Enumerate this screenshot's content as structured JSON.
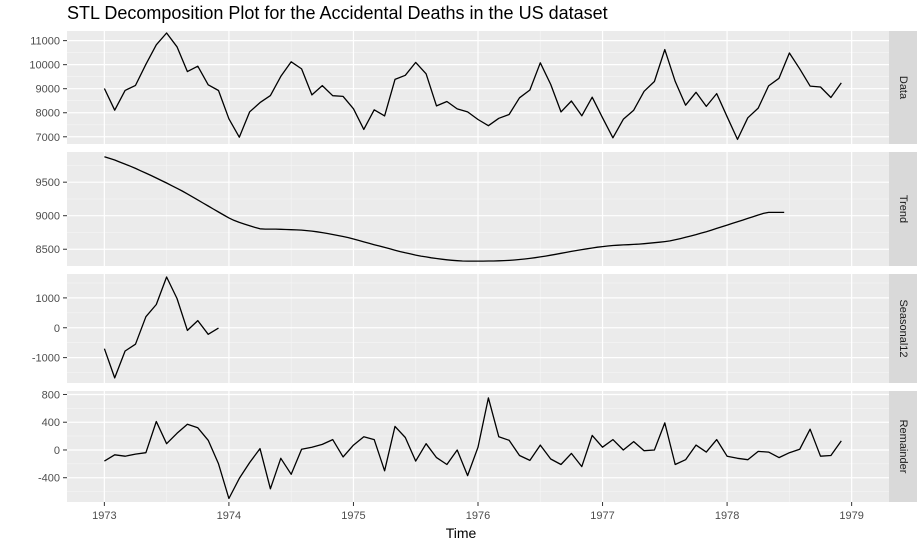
{
  "chart_data": {
    "type": "line",
    "title": "STL Decomposition Plot for the Accidental Deaths in the US dataset",
    "xlabel": "Time",
    "x_ticks": [
      "1973",
      "1974",
      "1975",
      "1976",
      "1977",
      "1978",
      "1979"
    ],
    "x_start": 1973,
    "x_step": 0.0833333,
    "xlim": [
      1972.7,
      1979.3
    ],
    "grid": true,
    "panels": [
      {
        "name": "Data",
        "ylim": [
          6700,
          11400
        ],
        "yticks": [
          7000,
          8000,
          9000,
          10000,
          11000
        ],
        "ytick_labels": [
          "7000",
          "8000",
          "9000",
          "10000",
          "11000"
        ],
        "values": [
          9007,
          8106,
          8928,
          9137,
          10017,
          10826,
          11317,
          10744,
          9713,
          9938,
          9161,
          8927,
          7750,
          6981,
          8038,
          8422,
          8714,
          9512,
          10120,
          9823,
          8743,
          9129,
          8710,
          8680,
          8162,
          7306,
          8124,
          7870,
          9387,
          9556,
          10093,
          9620,
          8285,
          8466,
          8160,
          8034,
          7717,
          7461,
          7767,
          7925,
          8623,
          8945,
          10078,
          9179,
          8037,
          8488,
          7874,
          8647,
          7792,
          6957,
          7726,
          8106,
          8890,
          9299,
          10625,
          9302,
          8314,
          8850,
          8265,
          8796,
          7836,
          6892,
          7791,
          8192,
          9115,
          9434,
          10484,
          9827,
          9110,
          9070,
          8633,
          9240
        ]
      },
      {
        "name": "Trend",
        "ylim": [
          8250,
          9950
        ],
        "yticks": [
          8500,
          9000,
          9500
        ],
        "ytick_labels": [
          "8500",
          "9000",
          "9500"
        ],
        "values": [
          9880,
          9855,
          9830,
          9800,
          9770,
          9738,
          9705,
          9670,
          9635,
          9600,
          9563,
          9525,
          9487,
          9448,
          9408,
          9368,
          9325,
          9280,
          9235,
          9190,
          9145,
          9100,
          9055,
          9010,
          8968,
          8930,
          8900,
          8875,
          8850,
          8825,
          8805,
          8800,
          8800,
          8800,
          8798,
          8795,
          8792,
          8788,
          8785,
          8778,
          8770,
          8760,
          8748,
          8735,
          8720,
          8705,
          8690,
          8673,
          8653,
          8632,
          8610,
          8588,
          8568,
          8548,
          8527,
          8506,
          8485,
          8465,
          8447,
          8430,
          8413,
          8398,
          8385,
          8373,
          8362,
          8352,
          8343,
          8335,
          8329,
          8325,
          8323,
          8323,
          8323,
          8323,
          8324,
          8325,
          8327,
          8330,
          8334,
          8340,
          8347,
          8355,
          8364,
          8374,
          8386,
          8398,
          8411,
          8425,
          8439,
          8453,
          8467,
          8481,
          8495,
          8507,
          8519,
          8530,
          8540,
          8548,
          8555,
          8560,
          8564,
          8568,
          8572,
          8577,
          8583,
          8590,
          8597,
          8605,
          8614,
          8625,
          8640,
          8658,
          8678,
          8698,
          8718,
          8740,
          8762,
          8785,
          8810,
          8835,
          8860,
          8885,
          8910,
          8935,
          8960,
          8985,
          9010,
          9035,
          9050,
          9050,
          9050,
          9050
        ],
        "values_step": 0.0416667
      },
      {
        "name": "Seasonal12",
        "ylim": [
          -1850,
          1800
        ],
        "yticks": [
          -1000,
          0,
          1000
        ],
        "ytick_labels": [
          "-1000",
          "0",
          "1000"
        ],
        "values": [
          -700,
          -1680,
          -780,
          -550,
          370,
          780,
          1700,
          980,
          -90,
          240,
          -220,
          -10
        ]
      },
      {
        "name": "Remainder",
        "ylim": [
          -750,
          850
        ],
        "yticks": [
          -400,
          0,
          400,
          800
        ],
        "ytick_labels": [
          "-400",
          "0",
          "400",
          "800"
        ],
        "values": [
          -160,
          -70,
          -90,
          -60,
          -40,
          410,
          90,
          240,
          370,
          320,
          140,
          -200,
          -700,
          -410,
          -180,
          20,
          -560,
          -120,
          -350,
          10,
          40,
          80,
          150,
          -100,
          70,
          190,
          150,
          -300,
          340,
          180,
          -160,
          90,
          -110,
          -210,
          0,
          -370,
          40,
          750,
          190,
          140,
          -80,
          -150,
          70,
          -130,
          -210,
          -50,
          -240,
          210,
          40,
          150,
          0,
          120,
          -10,
          0,
          390,
          -210,
          -140,
          70,
          -30,
          150,
          -90,
          -120,
          -140,
          -20,
          -30,
          -110,
          -40,
          10,
          300,
          -90,
          -80,
          130
        ]
      }
    ]
  }
}
